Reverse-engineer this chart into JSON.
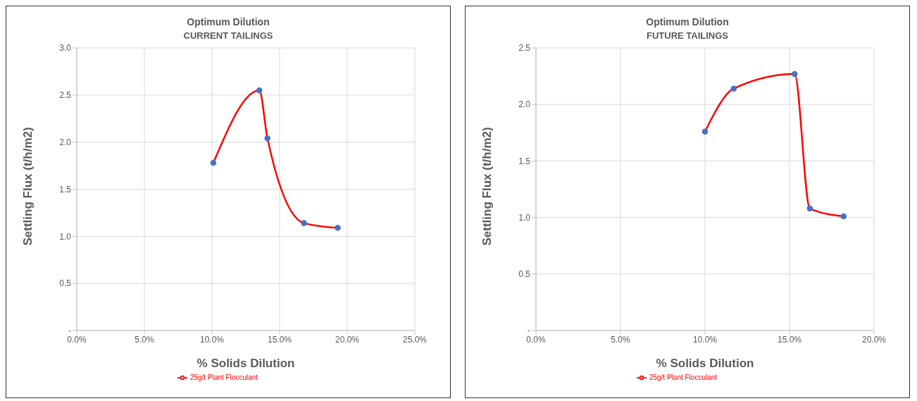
{
  "chart_data": [
    {
      "type": "line",
      "title": "Optimum Dilution",
      "subtitle": "CURRENT TAILINGS",
      "xlabel": "% Solids Dilution",
      "ylabel": "Settling Flux (t/h/m2)",
      "series": [
        {
          "name": "25g/t Plant Flocculant",
          "color": "#ff0000",
          "x": [
            10.1,
            13.5,
            14.1,
            16.8,
            19.3
          ],
          "values": [
            1.78,
            2.55,
            2.04,
            1.14,
            1.09
          ]
        }
      ],
      "xlim": [
        0,
        25
      ],
      "xticks": [
        {
          "value": 0,
          "label": "0.0%"
        },
        {
          "value": 5,
          "label": "5.0%"
        },
        {
          "value": 10,
          "label": "10.0%"
        },
        {
          "value": 15,
          "label": "15.0%"
        },
        {
          "value": 20,
          "label": "20.0%"
        },
        {
          "value": 25,
          "label": "25.0%"
        }
      ],
      "ylim": [
        0,
        3
      ],
      "yticks": [
        {
          "value": 0,
          "label": "-"
        },
        {
          "value": 0.5,
          "label": "0.5"
        },
        {
          "value": 1,
          "label": "1.0"
        },
        {
          "value": 1.5,
          "label": "1.5"
        },
        {
          "value": 2,
          "label": "2.0"
        },
        {
          "value": 2.5,
          "label": "2.5"
        },
        {
          "value": 3,
          "label": "3.0"
        }
      ],
      "grid": true,
      "legend": "bottom",
      "marker": "circle",
      "line_style": "solid"
    },
    {
      "type": "line",
      "title": "Optimum Dilution",
      "subtitle": "FUTURE TAILINGS",
      "xlabel": "% Solids Dilution",
      "ylabel": "Settling Flux (t/h/m2)",
      "series": [
        {
          "name": "25g/t Plant Flocculant",
          "color": "#ff0000",
          "x": [
            10.0,
            11.7,
            15.3,
            16.2,
            18.2
          ],
          "values": [
            1.76,
            2.14,
            2.27,
            1.08,
            1.01
          ]
        }
      ],
      "xlim": [
        0,
        20
      ],
      "xticks": [
        {
          "value": 0,
          "label": "0.0%"
        },
        {
          "value": 5,
          "label": "5.0%"
        },
        {
          "value": 10,
          "label": "10.0%"
        },
        {
          "value": 15,
          "label": "15.0%"
        },
        {
          "value": 20,
          "label": "20.0%"
        }
      ],
      "ylim": [
        0,
        2.5
      ],
      "yticks": [
        {
          "value": 0,
          "label": "-"
        },
        {
          "value": 0.5,
          "label": "0.5"
        },
        {
          "value": 1,
          "label": "1.0"
        },
        {
          "value": 1.5,
          "label": "1.5"
        },
        {
          "value": 2,
          "label": "2.0"
        },
        {
          "value": 2.5,
          "label": "2.5"
        }
      ],
      "grid": true,
      "legend": "bottom",
      "marker": "circle",
      "line_style": "solid"
    }
  ]
}
